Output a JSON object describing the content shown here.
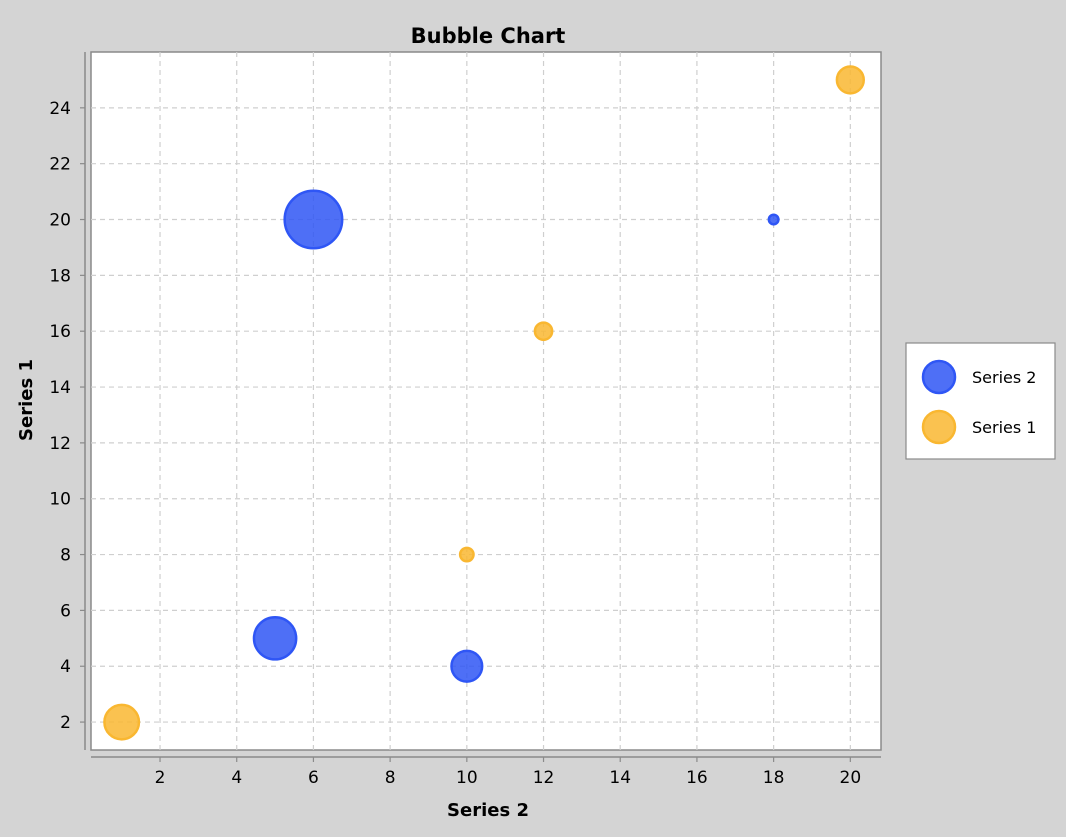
{
  "chart_data": {
    "type": "scatter",
    "subtype": "bubble",
    "title": "Bubble Chart",
    "xlabel": "Series 2",
    "ylabel": "Series 1",
    "xlim": [
      0.2,
      20.8
    ],
    "ylim": [
      1,
      26
    ],
    "xticks": [
      2,
      4,
      6,
      8,
      10,
      12,
      14,
      16,
      18,
      20
    ],
    "yticks": [
      2,
      4,
      6,
      8,
      10,
      12,
      14,
      16,
      18,
      20,
      22,
      24
    ],
    "grid": true,
    "legend_position": "right",
    "series": [
      {
        "name": "Series 2",
        "color": "#2f56f5",
        "points": [
          {
            "x": 6,
            "y": 20,
            "size": 1.5
          },
          {
            "x": 18,
            "y": 20,
            "size": 0.25
          },
          {
            "x": 5,
            "y": 5,
            "size": 1.1
          },
          {
            "x": 10,
            "y": 4,
            "size": 0.8
          }
        ]
      },
      {
        "name": "Series 1",
        "color": "#f9b731",
        "points": [
          {
            "x": 20,
            "y": 25,
            "size": 0.7
          },
          {
            "x": 12,
            "y": 16,
            "size": 0.45
          },
          {
            "x": 10,
            "y": 8,
            "size": 0.35
          },
          {
            "x": 1,
            "y": 2,
            "size": 0.9
          }
        ]
      }
    ]
  }
}
